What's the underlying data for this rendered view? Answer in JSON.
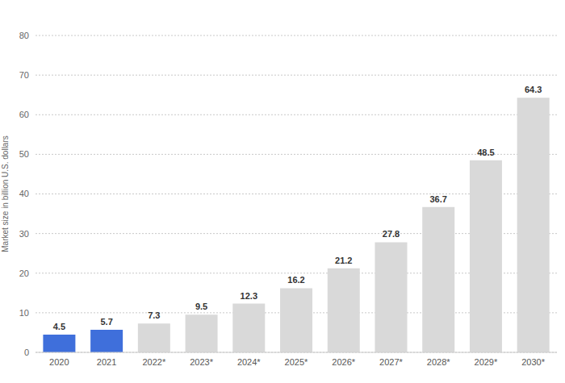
{
  "chart_data": {
    "type": "bar",
    "y_label": "Market size in billion U.S. dollars",
    "categories": [
      "2020",
      "2021",
      "2022*",
      "2023*",
      "2024*",
      "2025*",
      "2026*",
      "2027*",
      "2028*",
      "2029*",
      "2030*"
    ],
    "values": [
      4.5,
      5.7,
      7.3,
      9.5,
      12.3,
      16.2,
      21.2,
      27.8,
      36.7,
      48.5,
      64.3
    ],
    "colors": [
      "#3f6fdb",
      "#3f6fdb",
      "#d9d9d9",
      "#d9d9d9",
      "#d9d9d9",
      "#d9d9d9",
      "#d9d9d9",
      "#d9d9d9",
      "#d9d9d9",
      "#d9d9d9",
      "#d9d9d9"
    ],
    "ylim": [
      0,
      80
    ],
    "yticks": [
      0,
      10,
      20,
      30,
      40,
      50,
      60,
      70,
      80
    ],
    "grid": true,
    "data_labels": true
  }
}
